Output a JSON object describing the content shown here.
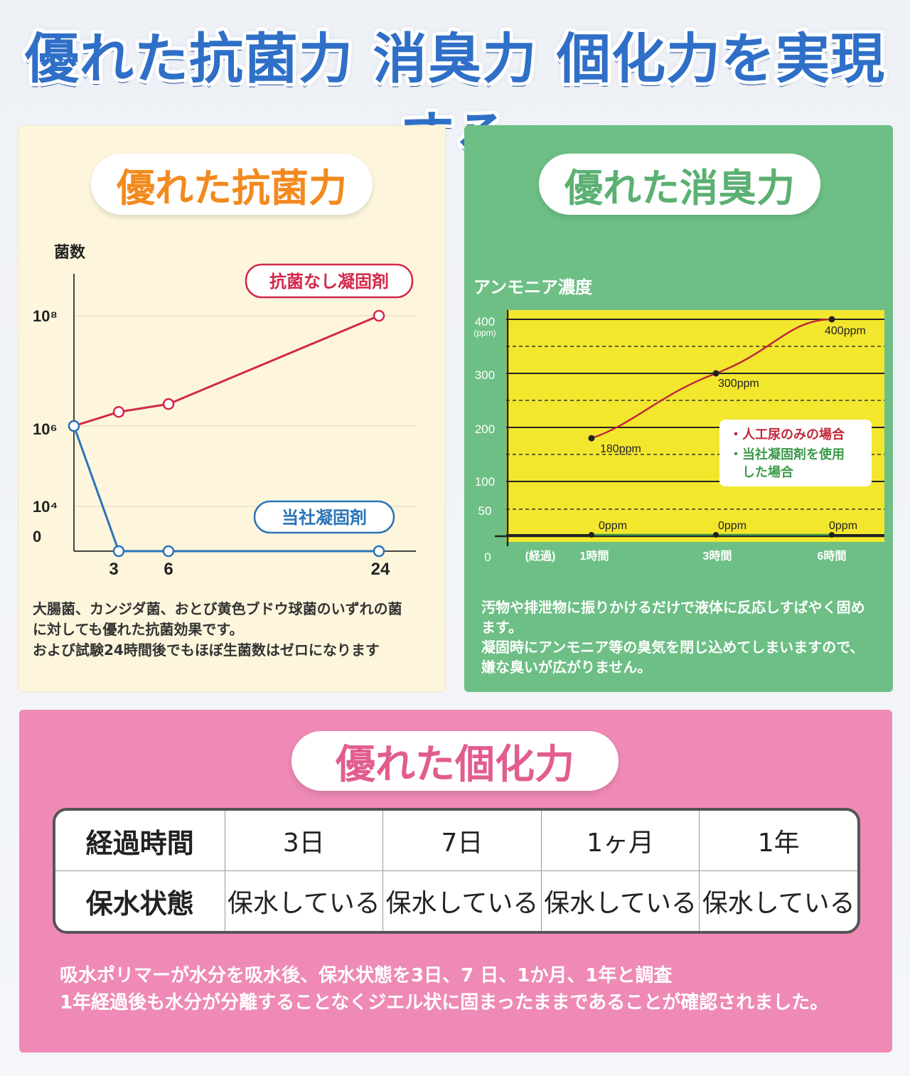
{
  "main_title": "優れた抗菌力 消臭力 個化力を実現する",
  "left_panel": {
    "pill_title": "優れた抗菌力",
    "description": [
      "大腸菌、カンジダ菌、おとび黄色ブドウ球菌のいずれの菌",
      "に対しても優れた抗菌効果です。",
      "および試験24時間後でもほぼ生菌数はゼロになります"
    ]
  },
  "right_panel": {
    "pill_title": "優れた消臭力",
    "description": [
      "汚物や排泄物に振りかけるだけで液体に反応しすばやく固め",
      "ます。",
      "凝固時にアンモニア等の臭気を閉じ込めてしまいますので、",
      "嫌な臭いが広がりません。"
    ]
  },
  "bottom_panel": {
    "pill_title": "優れた個化力",
    "table": {
      "header_row": [
        "経過時間",
        "3日",
        "7日",
        "1ヶ月",
        "1年"
      ],
      "value_row": [
        "保水状態",
        "保水している",
        "保水している",
        "保水している",
        "保水している"
      ]
    },
    "description": [
      "吸水ポリマーが水分を吸水後、保水状態を3日、7 日、1か月、1年と調査",
      "1年経過後も水分が分離することなくジエル状に固まったままであることが確認されました。"
    ]
  },
  "colors": {
    "blue_title": "#2f6fc7",
    "orange": "#f28a1e",
    "green": "#5bb072",
    "pink": "#e25d8f",
    "red_series": "#d2294a",
    "blue_series": "#2a74b8",
    "yellow_plot": "#f3e72e"
  },
  "chart_data": [
    {
      "type": "line",
      "ylabel": "菌数",
      "x": [
        0,
        3,
        6,
        24
      ],
      "x_ticks": [
        "3",
        "6",
        "24"
      ],
      "y_ticks": [
        "10⁸",
        "10⁶",
        "10⁴",
        "0"
      ],
      "y_scale": "log",
      "series": [
        {
          "name": "抗菌なし凝固剤",
          "points": [
            [
              0,
              1000000
            ],
            [
              3,
              1800000
            ],
            [
              6,
              2500000
            ],
            [
              24,
              100000000
            ]
          ]
        },
        {
          "name": "当社凝固剤",
          "points": [
            [
              0,
              1000000
            ],
            [
              3,
              0
            ],
            [
              6,
              0
            ],
            [
              24,
              0
            ]
          ]
        }
      ],
      "grid": true
    },
    {
      "type": "line",
      "title": "アンモニア濃度",
      "y_unit": "(ppm)",
      "y_ticks": [
        "400",
        "300",
        "200",
        "100",
        "50",
        "0"
      ],
      "x_ticks": [
        "(経過)",
        "1時間",
        "3時間",
        "6時間"
      ],
      "ylim": [
        0,
        400
      ],
      "legend": [
        "・人工尿のみの場合",
        "・当社凝固剤を使用",
        "した場合"
      ],
      "series": [
        {
          "name": "人工尿のみの場合",
          "categories": [
            "1時間",
            "3時間",
            "6時間"
          ],
          "values": [
            180,
            300,
            400
          ],
          "labels": [
            "180ppm",
            "300ppm",
            "400ppm"
          ]
        },
        {
          "name": "当社凝固剤を使用した場合",
          "categories": [
            "1時間",
            "3時間",
            "6時間"
          ],
          "values": [
            0,
            0,
            0
          ],
          "labels": [
            "0ppm",
            "0ppm",
            "0ppm"
          ]
        }
      ],
      "grid": true
    }
  ]
}
